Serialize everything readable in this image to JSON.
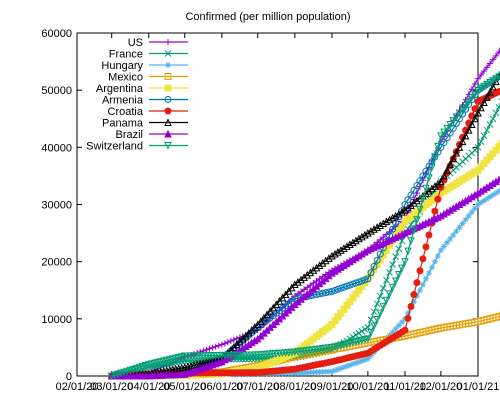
{
  "chart_data": {
    "type": "line",
    "title": "Confirmed (per million population)",
    "xlabel": "",
    "ylabel": "",
    "ylim": [
      0,
      60000
    ],
    "y_ticks": [
      0,
      10000,
      20000,
      30000,
      40000,
      50000,
      60000
    ],
    "x_ticks": [
      "02/01/20",
      "03/01/20",
      "04/01/20",
      "05/01/20",
      "06/01/20",
      "07/01/20",
      "08/01/20",
      "09/01/20",
      "10/01/20",
      "11/01/20",
      "12/01/20",
      "01/01/21"
    ],
    "legend_position": "top-left",
    "grid": false,
    "x_month_index_note_removed": true,
    "series": [
      {
        "name": "US",
        "color": "#9400d3",
        "marker": "plus",
        "x": [
          "03/01/20",
          "04/01/20",
          "05/01/20",
          "06/01/20",
          "07/01/20",
          "08/01/20",
          "09/01/20",
          "10/01/20",
          "11/01/20",
          "12/01/20",
          "01/01/21",
          "01/31/21"
        ],
        "y": [
          0,
          600,
          3300,
          5500,
          8000,
          14000,
          18500,
          22000,
          27500,
          41000,
          52000,
          60000
        ]
      },
      {
        "name": "France",
        "color": "#009e73",
        "marker": "x",
        "x": [
          "03/01/20",
          "04/01/20",
          "05/01/20",
          "06/01/20",
          "07/01/20",
          "08/01/20",
          "09/01/20",
          "10/01/20",
          "11/01/20",
          "12/01/20",
          "01/01/21",
          "01/31/21"
        ],
        "y": [
          0,
          1500,
          2600,
          2900,
          3000,
          3200,
          4500,
          8500,
          25000,
          34000,
          40000,
          52000
        ]
      },
      {
        "name": "Hungary",
        "color": "#56b4e9",
        "marker": "star",
        "x": [
          "03/01/20",
          "04/01/20",
          "05/01/20",
          "06/01/20",
          "07/01/20",
          "08/01/20",
          "09/01/20",
          "10/01/20",
          "11/01/20",
          "12/01/20",
          "01/01/21",
          "01/31/21"
        ],
        "y": [
          0,
          100,
          300,
          400,
          400,
          500,
          800,
          3000,
          10000,
          22000,
          30000,
          34000
        ]
      },
      {
        "name": "Mexico",
        "color": "#e69f00",
        "marker": "square",
        "x": [
          "03/01/20",
          "04/01/20",
          "05/01/20",
          "06/01/20",
          "07/01/20",
          "08/01/20",
          "09/01/20",
          "10/01/20",
          "11/01/20",
          "12/01/20",
          "01/01/21",
          "01/31/21"
        ],
        "y": [
          0,
          30,
          200,
          700,
          1800,
          3400,
          4600,
          5800,
          7000,
          8400,
          9500,
          11000
        ]
      },
      {
        "name": "Argentina",
        "color": "#f0e442",
        "marker": "filled-square",
        "x": [
          "03/01/20",
          "04/01/20",
          "05/01/20",
          "06/01/20",
          "07/01/20",
          "08/01/20",
          "09/01/20",
          "10/01/20",
          "11/01/20",
          "12/01/20",
          "01/01/21",
          "01/31/21"
        ],
        "y": [
          0,
          20,
          100,
          400,
          1400,
          4000,
          9000,
          17000,
          27000,
          32000,
          36000,
          43000
        ]
      },
      {
        "name": "Armenia",
        "color": "#0072b2",
        "marker": "circle",
        "x": [
          "03/01/20",
          "04/01/20",
          "05/01/20",
          "06/01/20",
          "07/01/20",
          "08/01/20",
          "09/01/20",
          "10/01/20",
          "11/01/20",
          "12/01/20",
          "01/01/21",
          "01/31/21"
        ],
        "y": [
          0,
          200,
          800,
          3000,
          8500,
          13500,
          14800,
          17000,
          30000,
          40000,
          50000,
          54000
        ]
      },
      {
        "name": "Croatia",
        "color": "#e51e10",
        "marker": "filled-circle",
        "x": [
          "03/01/20",
          "04/01/20",
          "05/01/20",
          "06/01/20",
          "07/01/20",
          "08/01/20",
          "09/01/20",
          "10/01/20",
          "11/01/20",
          "12/01/20",
          "01/01/21",
          "01/31/21"
        ],
        "y": [
          0,
          300,
          500,
          550,
          600,
          1200,
          2500,
          4000,
          8000,
          33000,
          48000,
          51000
        ]
      },
      {
        "name": "Panama",
        "color": "#000000",
        "marker": "triangle",
        "x": [
          "03/01/20",
          "04/01/20",
          "05/01/20",
          "06/01/20",
          "07/01/20",
          "08/01/20",
          "09/01/20",
          "10/01/20",
          "11/01/20",
          "12/01/20",
          "01/01/21",
          "01/31/21"
        ],
        "y": [
          0,
          400,
          1500,
          3000,
          9000,
          16000,
          21000,
          25000,
          29000,
          34000,
          46000,
          57000
        ]
      },
      {
        "name": "Brazil",
        "color": "#9400d3",
        "marker": "filled-triangle",
        "x": [
          "03/01/20",
          "04/01/20",
          "05/01/20",
          "06/01/20",
          "07/01/20",
          "08/01/20",
          "09/01/20",
          "10/01/20",
          "11/01/20",
          "12/01/20",
          "01/01/21",
          "01/31/21"
        ],
        "y": [
          0,
          30,
          300,
          2500,
          6500,
          12500,
          18000,
          22000,
          25000,
          28000,
          32000,
          36000
        ]
      },
      {
        "name": "Switzerland",
        "color": "#009e73",
        "marker": "inverted-triangle",
        "x": [
          "03/01/20",
          "04/01/20",
          "05/01/20",
          "06/01/20",
          "07/01/20",
          "08/01/20",
          "09/01/20",
          "10/01/20",
          "11/01/20",
          "12/01/20",
          "01/01/21",
          "01/31/21"
        ],
        "y": [
          0,
          2000,
          3500,
          3600,
          3700,
          4200,
          5000,
          6500,
          20000,
          42000,
          50000,
          54000
        ]
      }
    ]
  }
}
